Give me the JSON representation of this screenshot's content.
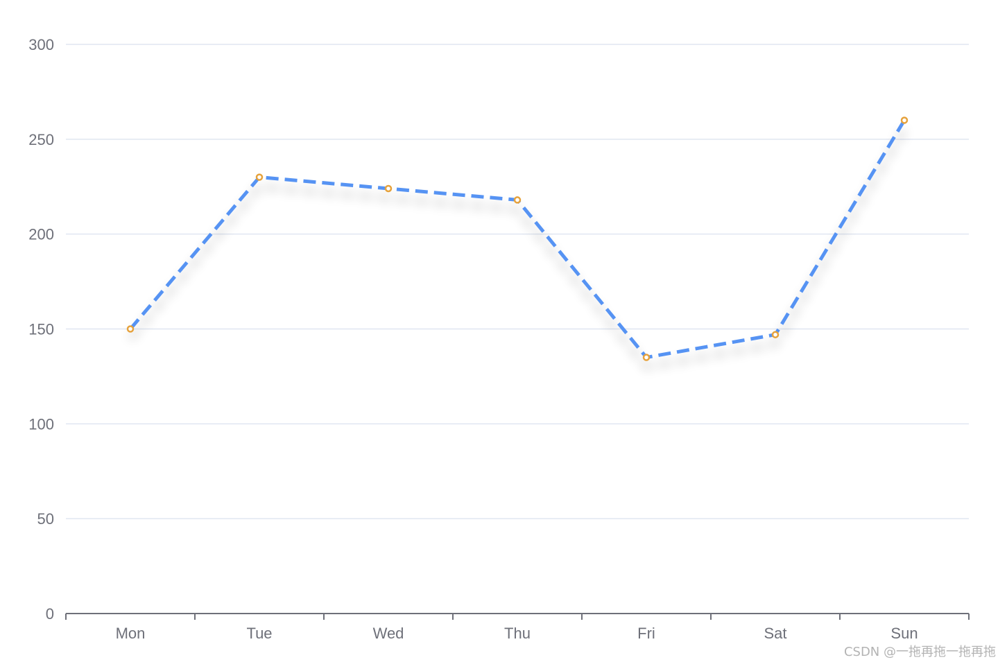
{
  "chart_data": {
    "type": "line",
    "categories": [
      "Mon",
      "Tue",
      "Wed",
      "Thu",
      "Fri",
      "Sat",
      "Sun"
    ],
    "series": [
      {
        "values": [
          150,
          230,
          224,
          218,
          135,
          147,
          260
        ]
      }
    ],
    "ylim": [
      0,
      300
    ],
    "y_ticks": [
      0,
      50,
      100,
      150,
      200,
      250,
      300
    ],
    "grid": true,
    "line_style": "dashed",
    "line_color": "#5793f3",
    "point_color": "#e6a23c",
    "grid_color": "#e0e6f1",
    "axis_color": "#6e7079",
    "label_color": "#6e7079"
  },
  "watermark": {
    "text": "CSDN @一拖再拖一拖再拖"
  }
}
